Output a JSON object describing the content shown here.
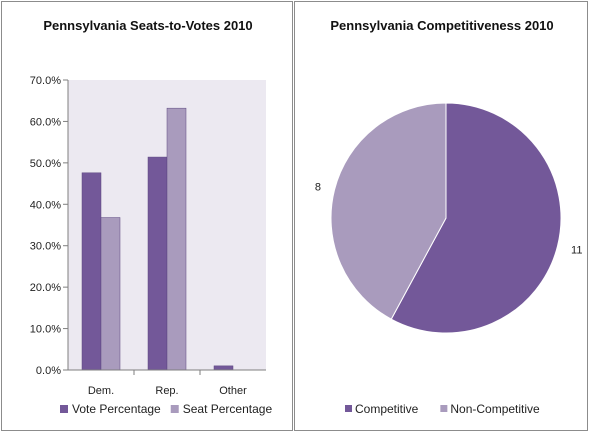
{
  "chart_data": [
    {
      "type": "bar",
      "title": "Pennsylvania Seats-to-Votes 2010",
      "categories": [
        "Dem.",
        "Rep.",
        "Other"
      ],
      "series": [
        {
          "name": "Vote Percentage",
          "color": "#735899",
          "values": [
            47.6,
            51.4,
            1.0
          ]
        },
        {
          "name": "Seat Percentage",
          "color": "#a99bbd",
          "values": [
            36.8,
            63.2,
            0.0
          ]
        }
      ],
      "ylim": [
        0,
        70
      ],
      "yticks": [
        0,
        10,
        20,
        30,
        40,
        50,
        60,
        70
      ],
      "ytick_labels": [
        "0.0%",
        "10.0%",
        "20.0%",
        "30.0%",
        "40.0%",
        "50.0%",
        "60.0%",
        "70.0%"
      ],
      "grid": false,
      "plot_background": "#ece9f1",
      "legend_position": "bottom"
    },
    {
      "type": "pie",
      "title": "Pennsylvania Competitiveness 2010",
      "labels": [
        "Competitive",
        "Non-Competitive"
      ],
      "values": [
        11,
        8
      ],
      "value_labels": [
        "11",
        "8"
      ],
      "colors": [
        "#735899",
        "#a99bbd"
      ],
      "legend_position": "bottom"
    }
  ]
}
